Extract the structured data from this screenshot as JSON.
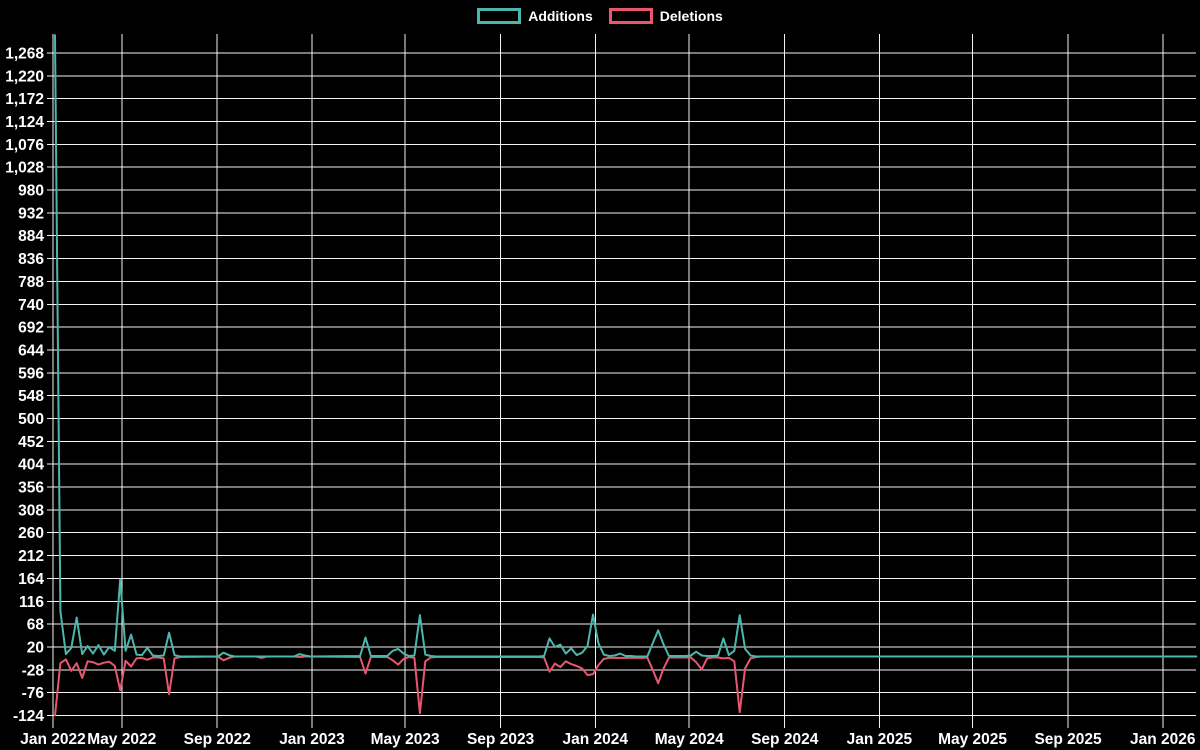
{
  "colors": {
    "background": "#000000",
    "grid": "#f2f2f2",
    "text": "#ffffff",
    "additions": "#4db6ac",
    "deletions": "#e8566f"
  },
  "chart_data": {
    "type": "line",
    "title": "",
    "legend_position": "top-center",
    "grid": true,
    "x_axis": {
      "ticks": [
        {
          "date": "2022-01-01",
          "label": "Jan 2022"
        },
        {
          "date": "2022-05-01",
          "label": "May 2022"
        },
        {
          "date": "2022-09-01",
          "label": "Sep 2022"
        },
        {
          "date": "2023-01-01",
          "label": "Jan 2023"
        },
        {
          "date": "2023-05-01",
          "label": "May 2023"
        },
        {
          "date": "2023-09-01",
          "label": "Sep 2023"
        },
        {
          "date": "2024-01-01",
          "label": "Jan 2024"
        },
        {
          "date": "2024-05-01",
          "label": "May 2024"
        },
        {
          "date": "2024-09-01",
          "label": "Sep 2024"
        },
        {
          "date": "2025-01-01",
          "label": "Jan 2025"
        },
        {
          "date": "2025-05-01",
          "label": "May 2025"
        },
        {
          "date": "2025-09-01",
          "label": "Sep 2025"
        },
        {
          "date": "2026-01-01",
          "label": "Jan 2026"
        }
      ]
    },
    "y_axis": {
      "min": -124,
      "max": 1268,
      "step": 48
    },
    "series": [
      {
        "name": "Additions",
        "color_key": "additions"
      },
      {
        "name": "Deletions",
        "color_key": "deletions"
      }
    ],
    "points": [
      [
        "2022-02-04",
        1305,
        -124
      ],
      [
        "2022-02-11",
        95,
        -14
      ],
      [
        "2022-02-18",
        5,
        -6
      ],
      [
        "2022-02-25",
        18,
        -30
      ],
      [
        "2022-03-04",
        82,
        -14
      ],
      [
        "2022-03-11",
        5,
        -45
      ],
      [
        "2022-03-18",
        22,
        -10
      ],
      [
        "2022-03-25",
        6,
        -12
      ],
      [
        "2022-04-01",
        24,
        -17
      ],
      [
        "2022-04-08",
        4,
        -13
      ],
      [
        "2022-04-15",
        20,
        -11
      ],
      [
        "2022-04-22",
        12,
        -20
      ],
      [
        "2022-04-29",
        162,
        -71
      ],
      [
        "2022-05-06",
        12,
        -9
      ],
      [
        "2022-05-13",
        46,
        -21
      ],
      [
        "2022-05-20",
        4,
        -4
      ],
      [
        "2022-05-27",
        3,
        -3
      ],
      [
        "2022-06-03",
        18,
        -7
      ],
      [
        "2022-06-10",
        2,
        -2
      ],
      [
        "2022-06-17",
        1,
        -2
      ],
      [
        "2022-06-24",
        2,
        -4
      ],
      [
        "2022-07-01",
        50,
        -79
      ],
      [
        "2022-07-08",
        3,
        -4
      ],
      [
        "2022-07-15",
        0,
        -1
      ],
      [
        "2022-09-02",
        0,
        0
      ],
      [
        "2022-09-09",
        8,
        -8
      ],
      [
        "2022-09-16",
        3,
        -3
      ],
      [
        "2022-09-23",
        0,
        0
      ],
      [
        "2022-10-21",
        0,
        0
      ],
      [
        "2022-10-28",
        0,
        -3
      ],
      [
        "2022-11-04",
        0,
        0
      ],
      [
        "2022-12-09",
        0,
        0
      ],
      [
        "2022-12-16",
        5,
        -1
      ],
      [
        "2022-12-23",
        2,
        0
      ],
      [
        "2022-12-30",
        0,
        0
      ],
      [
        "2023-03-04",
        1,
        -1
      ],
      [
        "2023-03-11",
        40,
        -36
      ],
      [
        "2023-03-18",
        1,
        -1
      ],
      [
        "2023-04-08",
        1,
        -1
      ],
      [
        "2023-04-15",
        12,
        -8
      ],
      [
        "2023-04-22",
        16,
        -17
      ],
      [
        "2023-04-29",
        6,
        -5
      ],
      [
        "2023-05-06",
        1,
        -1
      ],
      [
        "2023-05-13",
        2,
        -3
      ],
      [
        "2023-05-20",
        87,
        -119
      ],
      [
        "2023-05-27",
        4,
        -10
      ],
      [
        "2023-06-03",
        1,
        -2
      ],
      [
        "2023-06-10",
        0,
        -1
      ],
      [
        "2023-10-20",
        0,
        -1
      ],
      [
        "2023-10-27",
        1,
        -2
      ],
      [
        "2023-11-03",
        38,
        -32
      ],
      [
        "2023-11-10",
        20,
        -15
      ],
      [
        "2023-11-17",
        25,
        -22
      ],
      [
        "2023-11-24",
        6,
        -10
      ],
      [
        "2023-12-01",
        17,
        -16
      ],
      [
        "2023-12-08",
        3,
        -20
      ],
      [
        "2023-12-15",
        8,
        -25
      ],
      [
        "2023-12-22",
        22,
        -39
      ],
      [
        "2023-12-29",
        88,
        -37
      ],
      [
        "2024-01-05",
        28,
        -18
      ],
      [
        "2024-01-12",
        4,
        -5
      ],
      [
        "2024-01-19",
        1,
        -3
      ],
      [
        "2024-01-26",
        2,
        -3
      ],
      [
        "2024-02-02",
        6,
        -3
      ],
      [
        "2024-02-09",
        1,
        -3
      ],
      [
        "2024-02-16",
        1,
        -3
      ],
      [
        "2024-02-23",
        0,
        -3
      ],
      [
        "2024-03-01",
        0,
        -3
      ],
      [
        "2024-03-08",
        0,
        -2
      ],
      [
        "2024-03-15",
        28,
        -28
      ],
      [
        "2024-03-22",
        55,
        -56
      ],
      [
        "2024-03-29",
        25,
        -25
      ],
      [
        "2024-04-05",
        1,
        -2
      ],
      [
        "2024-04-12",
        1,
        -2
      ],
      [
        "2024-04-19",
        1,
        -2
      ],
      [
        "2024-04-26",
        1,
        -2
      ],
      [
        "2024-05-03",
        2,
        -2
      ],
      [
        "2024-05-10",
        10,
        -12
      ],
      [
        "2024-05-17",
        2,
        -27
      ],
      [
        "2024-05-24",
        1,
        -4
      ],
      [
        "2024-05-31",
        1,
        -2
      ],
      [
        "2024-06-07",
        2,
        -2
      ],
      [
        "2024-06-14",
        38,
        -4
      ],
      [
        "2024-06-21",
        3,
        -3
      ],
      [
        "2024-06-28",
        12,
        -10
      ],
      [
        "2024-07-05",
        87,
        -117
      ],
      [
        "2024-07-12",
        16,
        -25
      ],
      [
        "2024-07-19",
        2,
        -4
      ],
      [
        "2024-07-26",
        0,
        -1
      ],
      [
        "2024-08-02",
        0,
        0
      ],
      [
        "2026-02-13",
        0,
        0
      ]
    ]
  }
}
